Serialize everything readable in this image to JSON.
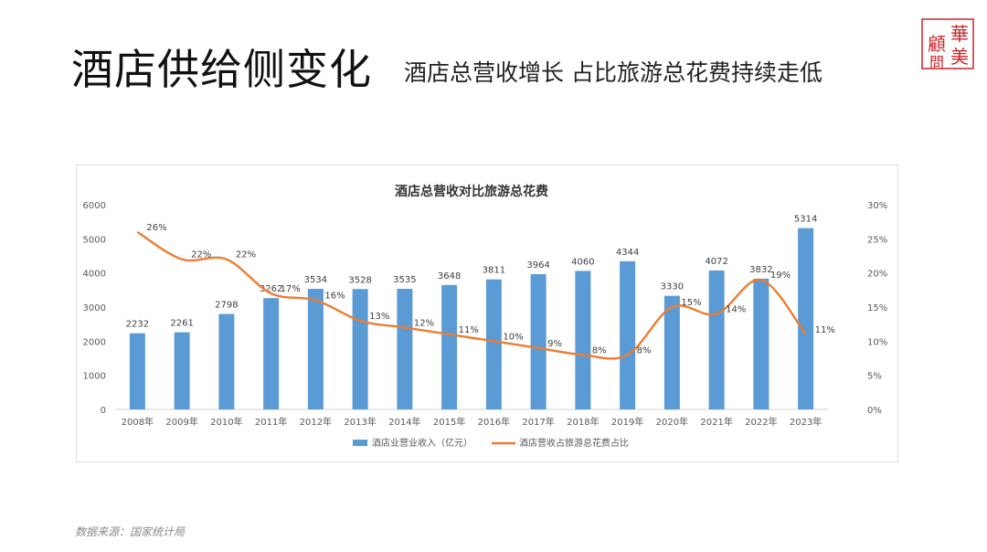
{
  "page": {
    "title": "酒店供给侧变化",
    "subtitle": "酒店总营收增长 占比旅游总花费持续走低",
    "logo": {
      "text": "華美顧問",
      "color": "#c8262a"
    },
    "source": "数据来源：国家统计局"
  },
  "chart_data": {
    "type": "bar",
    "title": "酒店总营收对比旅游总花费",
    "categories": [
      "2008年",
      "2009年",
      "2010年",
      "2011年",
      "2012年",
      "2013年",
      "2014年",
      "2015年",
      "2016年",
      "2017年",
      "2018年",
      "2019年",
      "2020年",
      "2021年",
      "2022年",
      "2023年"
    ],
    "series": [
      {
        "name": "酒店业营业收入（亿元）",
        "type": "bar",
        "axis": "left",
        "color": "#5b9bd5",
        "values": [
          2232,
          2261,
          2798,
          3262,
          3534,
          3528,
          3535,
          3648,
          3811,
          3964,
          4060,
          4344,
          3330,
          4072,
          3832,
          5314
        ]
      },
      {
        "name": "酒店营收占旅游总花费占比",
        "type": "line",
        "axis": "right",
        "color": "#ed7d31",
        "values": [
          26,
          22,
          22,
          17,
          16,
          13,
          12,
          11,
          10,
          9,
          8,
          8,
          15,
          14,
          19,
          11
        ],
        "labels": [
          "26%",
          "22%",
          "22%",
          "17%",
          "16%",
          "13%",
          "12%",
          "11%",
          "10%",
          "9%",
          "8%",
          "8%",
          "15%",
          "14%",
          "19%",
          "11%"
        ]
      }
    ],
    "yleft": {
      "lim": [
        0,
        6000
      ],
      "ticks": [
        "0",
        "1000",
        "2000",
        "3000",
        "4000",
        "5000",
        "6000"
      ]
    },
    "yright": {
      "lim": [
        0,
        30
      ],
      "ticks": [
        "0%",
        "5%",
        "10%",
        "15%",
        "20%",
        "25%",
        "30%"
      ]
    },
    "grid": false,
    "legend": "bottom"
  }
}
